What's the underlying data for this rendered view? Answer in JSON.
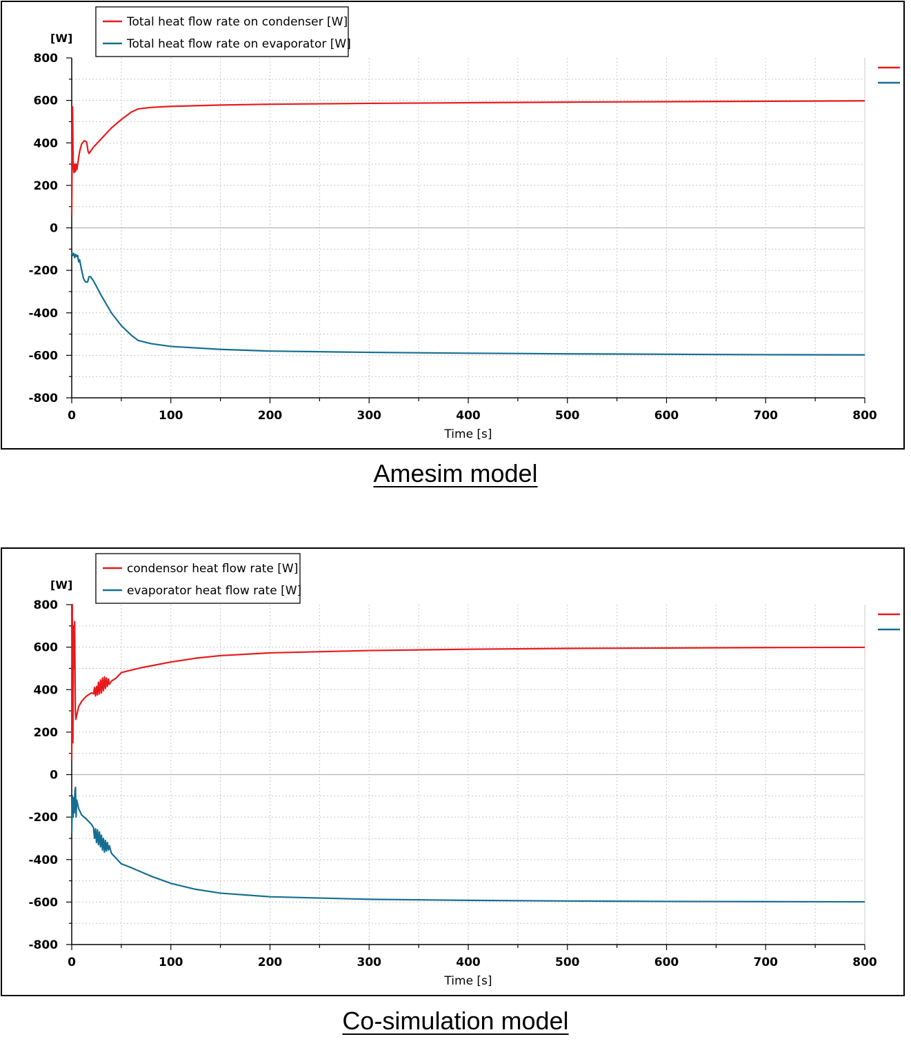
{
  "colors": {
    "condenser": "#e8191c",
    "evaporator": "#146d91",
    "grid": "#c8c8c8",
    "zero_line": "#b4b4b4"
  },
  "captions": {
    "top": "Amesim model",
    "bottom": "Co-simulation model"
  },
  "chart_data": [
    {
      "type": "line",
      "title": "",
      "xlabel": "Time [s]",
      "ylabel": "[W]",
      "xlim": [
        0,
        800
      ],
      "ylim": [
        -800,
        800
      ],
      "xticks": [
        0,
        100,
        200,
        300,
        400,
        500,
        600,
        700,
        800
      ],
      "yticks": [
        800,
        600,
        400,
        200,
        0,
        -200,
        -400,
        -600,
        -800
      ],
      "grid": true,
      "legend_position": "top-left",
      "series": [
        {
          "name": "Total heat flow rate on condenser [W]",
          "color": "#e8191c",
          "points": [
            [
              0,
              60
            ],
            [
              0.8,
              570
            ],
            [
              1.5,
              290
            ],
            [
              2.3,
              260
            ],
            [
              3,
              300
            ],
            [
              3.8,
              265
            ],
            [
              4.5,
              300
            ],
            [
              5.3,
              275
            ],
            [
              6,
              300
            ],
            [
              8,
              360
            ],
            [
              10,
              395
            ],
            [
              12.5,
              410
            ],
            [
              15,
              405
            ],
            [
              16.5,
              360
            ],
            [
              17.5,
              350
            ],
            [
              22,
              380
            ],
            [
              30,
              420
            ],
            [
              40,
              470
            ],
            [
              50,
              510
            ],
            [
              60,
              545
            ],
            [
              67,
              560
            ],
            [
              80,
              567
            ],
            [
              100,
              572
            ],
            [
              150,
              578
            ],
            [
              200,
              582
            ],
            [
              300,
              586
            ],
            [
              400,
              589
            ],
            [
              500,
              592
            ],
            [
              600,
              594
            ],
            [
              700,
              596
            ],
            [
              800,
              598
            ]
          ]
        },
        {
          "name": "Total heat flow rate on evaporator [W]",
          "color": "#146d91",
          "points": [
            [
              0,
              -115
            ],
            [
              1,
              -130
            ],
            [
              2,
              -120
            ],
            [
              3,
              -140
            ],
            [
              4,
              -125
            ],
            [
              5,
              -135
            ],
            [
              6,
              -130
            ],
            [
              7,
              -160
            ],
            [
              8,
              -150
            ],
            [
              10,
              -200
            ],
            [
              12,
              -240
            ],
            [
              14,
              -255
            ],
            [
              16,
              -255
            ],
            [
              17.5,
              -230
            ],
            [
              19,
              -230
            ],
            [
              22,
              -250
            ],
            [
              30,
              -320
            ],
            [
              40,
              -400
            ],
            [
              50,
              -460
            ],
            [
              60,
              -505
            ],
            [
              67,
              -530
            ],
            [
              80,
              -545
            ],
            [
              100,
              -558
            ],
            [
              150,
              -572
            ],
            [
              200,
              -580
            ],
            [
              300,
              -586
            ],
            [
              400,
              -590
            ],
            [
              500,
              -593
            ],
            [
              600,
              -595
            ],
            [
              700,
              -597
            ],
            [
              800,
              -598
            ]
          ]
        }
      ]
    },
    {
      "type": "line",
      "title": "",
      "xlabel": "Time [s]",
      "ylabel": "[W]",
      "xlim": [
        0,
        800
      ],
      "ylim": [
        -800,
        800
      ],
      "xticks": [
        0,
        100,
        200,
        300,
        400,
        500,
        600,
        700,
        800
      ],
      "yticks": [
        800,
        600,
        400,
        200,
        0,
        -200,
        -400,
        -600,
        -800
      ],
      "grid": true,
      "legend_position": "top-left",
      "series": [
        {
          "name": "condensor heat flow rate [W]",
          "color": "#e8191c",
          "points": [
            [
              0,
              70
            ],
            [
              0.6,
              800
            ],
            [
              1.2,
              150
            ],
            [
              1.8,
              700
            ],
            [
              2.4,
              500
            ],
            [
              3,
              720
            ],
            [
              3.6,
              300
            ],
            [
              4.2,
              260
            ],
            [
              5,
              280
            ],
            [
              7,
              320
            ],
            [
              10,
              345
            ],
            [
              15,
              370
            ],
            [
              20,
              385
            ],
            [
              22,
              380
            ],
            [
              23,
              410
            ],
            [
              24,
              370
            ],
            [
              25,
              415
            ],
            [
              26,
              375
            ],
            [
              27,
              435
            ],
            [
              28,
              380
            ],
            [
              29,
              445
            ],
            [
              30,
              385
            ],
            [
              31,
              455
            ],
            [
              32,
              395
            ],
            [
              33,
              460
            ],
            [
              34,
              405
            ],
            [
              35,
              455
            ],
            [
              36,
              415
            ],
            [
              37,
              450
            ],
            [
              38,
              425
            ],
            [
              40,
              440
            ],
            [
              45,
              455
            ],
            [
              50,
              480
            ],
            [
              60,
              492
            ],
            [
              70,
              503
            ],
            [
              80,
              512
            ],
            [
              100,
              530
            ],
            [
              125,
              548
            ],
            [
              150,
              560
            ],
            [
              200,
              573
            ],
            [
              300,
              584
            ],
            [
              400,
              590
            ],
            [
              500,
              594
            ],
            [
              600,
              596
            ],
            [
              700,
              598
            ],
            [
              800,
              599
            ]
          ]
        },
        {
          "name": "evaporator heat flow rate [W]",
          "color": "#146d91",
          "points": [
            [
              0,
              -280
            ],
            [
              0.7,
              -100
            ],
            [
              1.4,
              -200
            ],
            [
              2,
              -110
            ],
            [
              2.6,
              -180
            ],
            [
              3.2,
              -80
            ],
            [
              3.8,
              -60
            ],
            [
              4.4,
              -200
            ],
            [
              5,
              -120
            ],
            [
              7,
              -160
            ],
            [
              10,
              -190
            ],
            [
              15,
              -210
            ],
            [
              20,
              -235
            ],
            [
              22,
              -250
            ],
            [
              23,
              -300
            ],
            [
              24,
              -255
            ],
            [
              25,
              -320
            ],
            [
              26,
              -260
            ],
            [
              27,
              -330
            ],
            [
              28,
              -270
            ],
            [
              29,
              -340
            ],
            [
              30,
              -285
            ],
            [
              31,
              -355
            ],
            [
              32,
              -300
            ],
            [
              33,
              -365
            ],
            [
              34,
              -310
            ],
            [
              35,
              -360
            ],
            [
              36,
              -320
            ],
            [
              37,
              -355
            ],
            [
              38,
              -335
            ],
            [
              40,
              -370
            ],
            [
              45,
              -395
            ],
            [
              50,
              -420
            ],
            [
              60,
              -438
            ],
            [
              70,
              -458
            ],
            [
              80,
              -478
            ],
            [
              100,
              -512
            ],
            [
              125,
              -540
            ],
            [
              150,
              -558
            ],
            [
              200,
              -575
            ],
            [
              300,
              -587
            ],
            [
              400,
              -592
            ],
            [
              500,
              -595
            ],
            [
              600,
              -597
            ],
            [
              700,
              -598
            ],
            [
              800,
              -599
            ]
          ]
        }
      ]
    }
  ]
}
